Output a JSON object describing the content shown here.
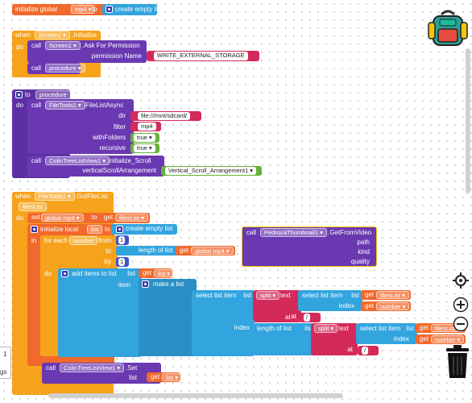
{
  "blocks": {
    "global_init": {
      "prefix": "initialize global",
      "name": "mp4",
      "to": "to",
      "value": "create empty list"
    },
    "screen_init": {
      "when": "when",
      "component": "Screen1",
      "event": ".Initialize",
      "do": "do",
      "call": "call",
      "method_component": "Screen1",
      "method": ".Ask For Permission",
      "permission_label": "permission Name",
      "permission_value": "WRITE_EXTERNAL_STORAGE",
      "call2": "call",
      "procedure_call": "procedure"
    },
    "procedure_def": {
      "to": "to",
      "name": "procedure",
      "do": "do",
      "call": "call",
      "component": "FileTools1",
      "method": ".FileListAsync",
      "dir_label": "dir",
      "dir_value": "file:///mnt/sdcard/",
      "filter_label": "filter",
      "filter_value": "mp4",
      "withfolders_label": "withFolders",
      "withfolders_value": "true",
      "recursive_label": "recursive",
      "recursive_value": "true",
      "call2": "call",
      "tree_component": "ColinTreeListView1",
      "tree_method": ".Initialize_Scroll",
      "vsa_label": "verticalScrollArrangement",
      "vsa_value": "Vertical_Scroll_Arrangement1"
    },
    "gotfilelist": {
      "when": "when",
      "component": "FileTools1",
      "event": ".GotFileList",
      "param": "filesList",
      "do": "do",
      "set": "set",
      "set_var": "global mp4",
      "set_to": "to",
      "get": "get",
      "get_var": "filesList",
      "init_local": "initialize local",
      "local_name": "list",
      "local_to": "to",
      "local_value": "create empty list",
      "in": "in",
      "foreach": "for each",
      "foreach_var": "number",
      "from": "from",
      "from_val": "1",
      "to_label": "to",
      "length_label": "length of list",
      "list_label": "list",
      "get2": "get",
      "get2_var": "global mp4",
      "by": "by",
      "by_val": "1",
      "do2": "do",
      "add_items": "add items to list",
      "list2": "list",
      "get3": "get",
      "get3_var": "list",
      "item": "item",
      "make_list": "make a list",
      "select_item": "select list item",
      "list3": "list",
      "split": "split",
      "text": "text",
      "select_item2": "select list item",
      "list4": "list",
      "get4": "get",
      "get4_var": "filesList",
      "index": "index",
      "get5": "get",
      "get5_var": "number",
      "at": "at",
      "at_val": "/",
      "index2": "index",
      "length2": "length of list",
      "list5": "list",
      "split2": "split",
      "text2": "text",
      "select_item3": "select list item",
      "list6": "list",
      "get6": "get",
      "get6_var": "filesList",
      "index3": "index",
      "get7": "get",
      "get7_var": "number",
      "at2": "at",
      "at2_val": "/",
      "call": "call",
      "tree_component": "ColinTreeListView1",
      "tree_method": ".Set",
      "list7": "list",
      "get8": "get",
      "get8_var": "list"
    },
    "thumbnail": {
      "call": "call",
      "component": "PedrozaThumbnail1",
      "method": ".GetFromVideo",
      "path": "path",
      "kind": "kind",
      "quality": "quality"
    }
  },
  "workspace": {
    "side_counter": "1",
    "side_tag": "gs"
  },
  "icons": [
    "backpack-icon",
    "target-icon",
    "zoom-in-icon",
    "zoom-out-icon",
    "trash-icon",
    "gear-icon"
  ],
  "colors": {
    "event": "#f7a21b",
    "variable": "#f1692c",
    "component": "#6a39b2",
    "text": "#d42a5a",
    "list": "#32a4de",
    "math": "#3b54cc",
    "logic": "#66b33a",
    "procedure": "#6a39b2"
  }
}
